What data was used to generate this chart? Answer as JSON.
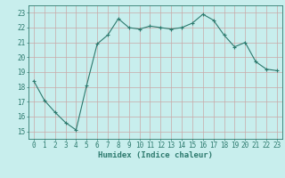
{
  "x": [
    0,
    1,
    2,
    3,
    4,
    5,
    6,
    7,
    8,
    9,
    10,
    11,
    12,
    13,
    14,
    15,
    16,
    17,
    18,
    19,
    20,
    21,
    22,
    23
  ],
  "y": [
    18.4,
    17.1,
    16.3,
    15.6,
    15.1,
    18.1,
    20.9,
    21.5,
    22.6,
    22.0,
    21.9,
    22.1,
    22.0,
    21.9,
    22.0,
    22.3,
    22.9,
    22.5,
    21.5,
    20.7,
    21.0,
    19.7,
    19.2,
    19.1
  ],
  "line_color": "#2d7a6e",
  "bg_color": "#c8eeed",
  "grid_color": "#c8a8a8",
  "xlabel": "Humidex (Indice chaleur)",
  "ylim": [
    14.5,
    23.5
  ],
  "xlim": [
    -0.5,
    23.5
  ],
  "yticks": [
    15,
    16,
    17,
    18,
    19,
    20,
    21,
    22,
    23
  ],
  "xticks": [
    0,
    1,
    2,
    3,
    4,
    5,
    6,
    7,
    8,
    9,
    10,
    11,
    12,
    13,
    14,
    15,
    16,
    17,
    18,
    19,
    20,
    21,
    22,
    23
  ],
  "label_fontsize": 6.5,
  "tick_fontsize": 5.5
}
